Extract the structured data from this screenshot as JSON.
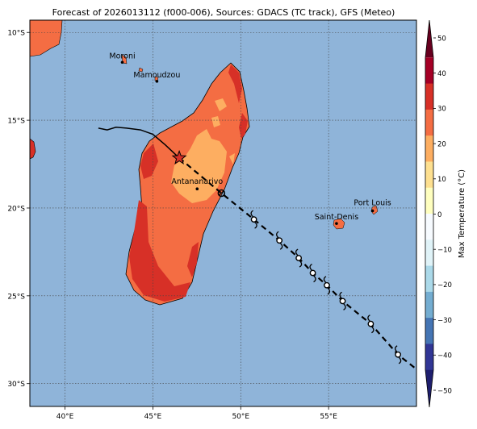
{
  "title": "Forecast of 2026013112 (f000-006), Sources: GDACS (TC track), GFS (Meteo)",
  "map": {
    "lat_ticks": [
      {
        "value": -10,
        "label": "10°S"
      },
      {
        "value": -15,
        "label": "15°S"
      },
      {
        "value": -20,
        "label": "20°S"
      },
      {
        "value": -25,
        "label": "25°S"
      },
      {
        "value": -30,
        "label": "30°S"
      }
    ],
    "lon_ticks": [
      {
        "value": 40,
        "label": "40°E"
      },
      {
        "value": 45,
        "label": "45°E"
      },
      {
        "value": 50,
        "label": "50°E"
      },
      {
        "value": 55,
        "label": "55°E"
      }
    ],
    "colors": {
      "ocean": "#8fb4d9",
      "land_base": "#f46d43",
      "land_hot": "#d73027",
      "land_warm": "#fdae61",
      "track": "#000000",
      "current_marker": "#d73027"
    },
    "cities": [
      {
        "name": "Moroni",
        "lon": 43.26,
        "lat": -11.7
      },
      {
        "name": "Mamoudzou",
        "lon": 45.23,
        "lat": -12.78
      },
      {
        "name": "Antananarivo",
        "lon": 47.52,
        "lat": -18.91
      },
      {
        "name": "Saint-Denis",
        "lon": 55.45,
        "lat": -20.88
      },
      {
        "name": "Port Louis",
        "lon": 57.5,
        "lat": -20.16
      }
    ]
  },
  "track": {
    "past": [
      {
        "lon": 41.9,
        "lat": -15.45
      },
      {
        "lon": 42.4,
        "lat": -15.55
      },
      {
        "lon": 42.9,
        "lat": -15.4
      },
      {
        "lon": 43.5,
        "lat": -15.45
      },
      {
        "lon": 44.3,
        "lat": -15.55
      },
      {
        "lon": 45.0,
        "lat": -15.8
      },
      {
        "lon": 45.7,
        "lat": -16.4
      },
      {
        "lon": 46.5,
        "lat": -17.15
      }
    ],
    "current": {
      "lon": 46.5,
      "lat": -17.15
    },
    "forecast": [
      {
        "lon": 48.9,
        "lat": -19.15,
        "symbol": "low"
      },
      {
        "lon": 50.75,
        "lat": -20.65,
        "symbol": "storm"
      },
      {
        "lon": 52.2,
        "lat": -21.85,
        "symbol": "storm"
      },
      {
        "lon": 53.3,
        "lat": -22.85,
        "symbol": "storm"
      },
      {
        "lon": 54.1,
        "lat": -23.7,
        "symbol": "storm"
      },
      {
        "lon": 54.9,
        "lat": -24.4,
        "symbol": "storm"
      },
      {
        "lon": 55.8,
        "lat": -25.3,
        "symbol": "storm"
      },
      {
        "lon": 57.4,
        "lat": -26.6,
        "symbol": "storm"
      },
      {
        "lon": 58.95,
        "lat": -28.35,
        "symbol": "storm"
      },
      {
        "lon": 59.9,
        "lat": -29.1,
        "symbol": "none"
      }
    ]
  },
  "colorbar": {
    "label": "Max Temperature (°C)",
    "ticks": [
      "50",
      "40",
      "30",
      "20",
      "10",
      "0",
      "−10",
      "−20",
      "−30",
      "−40",
      "−50"
    ],
    "colors": [
      "#67001f",
      "#a50026",
      "#d73027",
      "#f46d43",
      "#fdae61",
      "#fee090",
      "#ffffbf",
      "#f7fbff",
      "#e0f3f8",
      "#abd9e9",
      "#74add1",
      "#4575b4",
      "#313695",
      "#1f1f6e"
    ]
  }
}
